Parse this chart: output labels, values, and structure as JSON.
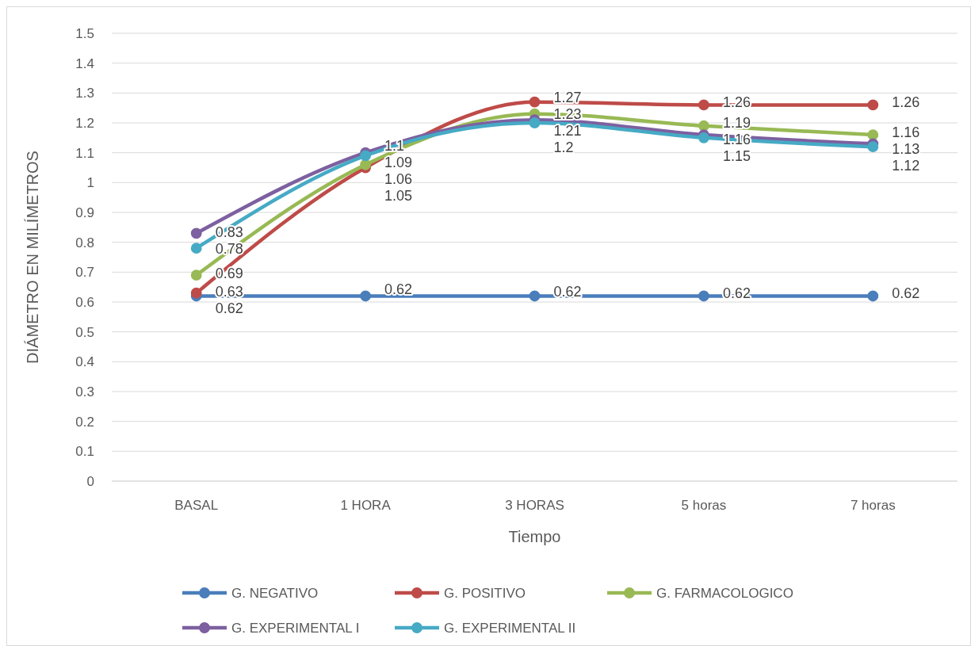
{
  "chart_data": {
    "type": "line",
    "xlabel": "Tiempo",
    "ylabel": "DIÁMETRO  EN MILÍMETROS",
    "categories": [
      "BASAL",
      "1 HORA",
      "3 HORAS",
      "5 horas",
      "7 horas"
    ],
    "series": [
      {
        "name": "G. NEGATIVO",
        "color": "#4a7ebb",
        "values": [
          0.62,
          0.62,
          0.62,
          0.62,
          0.62
        ]
      },
      {
        "name": "G. POSITIVO",
        "color": "#be4b48",
        "values": [
          0.63,
          1.05,
          1.27,
          1.26,
          1.26
        ]
      },
      {
        "name": "G. FARMACOLOGICO",
        "color": "#98b954",
        "values": [
          0.69,
          1.06,
          1.23,
          1.19,
          1.16
        ]
      },
      {
        "name": "G. EXPERIMENTAL I",
        "color": "#7d60a0",
        "values": [
          0.83,
          1.1,
          1.21,
          1.16,
          1.13
        ]
      },
      {
        "name": "G. EXPERIMENTAL II",
        "color": "#46aac5",
        "values": [
          0.78,
          1.09,
          1.2,
          1.15,
          1.12
        ]
      }
    ],
    "ylim": [
      0,
      1.5
    ],
    "yticks": [
      0,
      0.1,
      0.2,
      0.3,
      0.4,
      0.5,
      0.6,
      0.7,
      0.8,
      0.9,
      1,
      1.1,
      1.2,
      1.3,
      1.4,
      1.5
    ],
    "grid": "y",
    "legend": "bottom",
    "marker": "circle",
    "data_labels": true
  }
}
